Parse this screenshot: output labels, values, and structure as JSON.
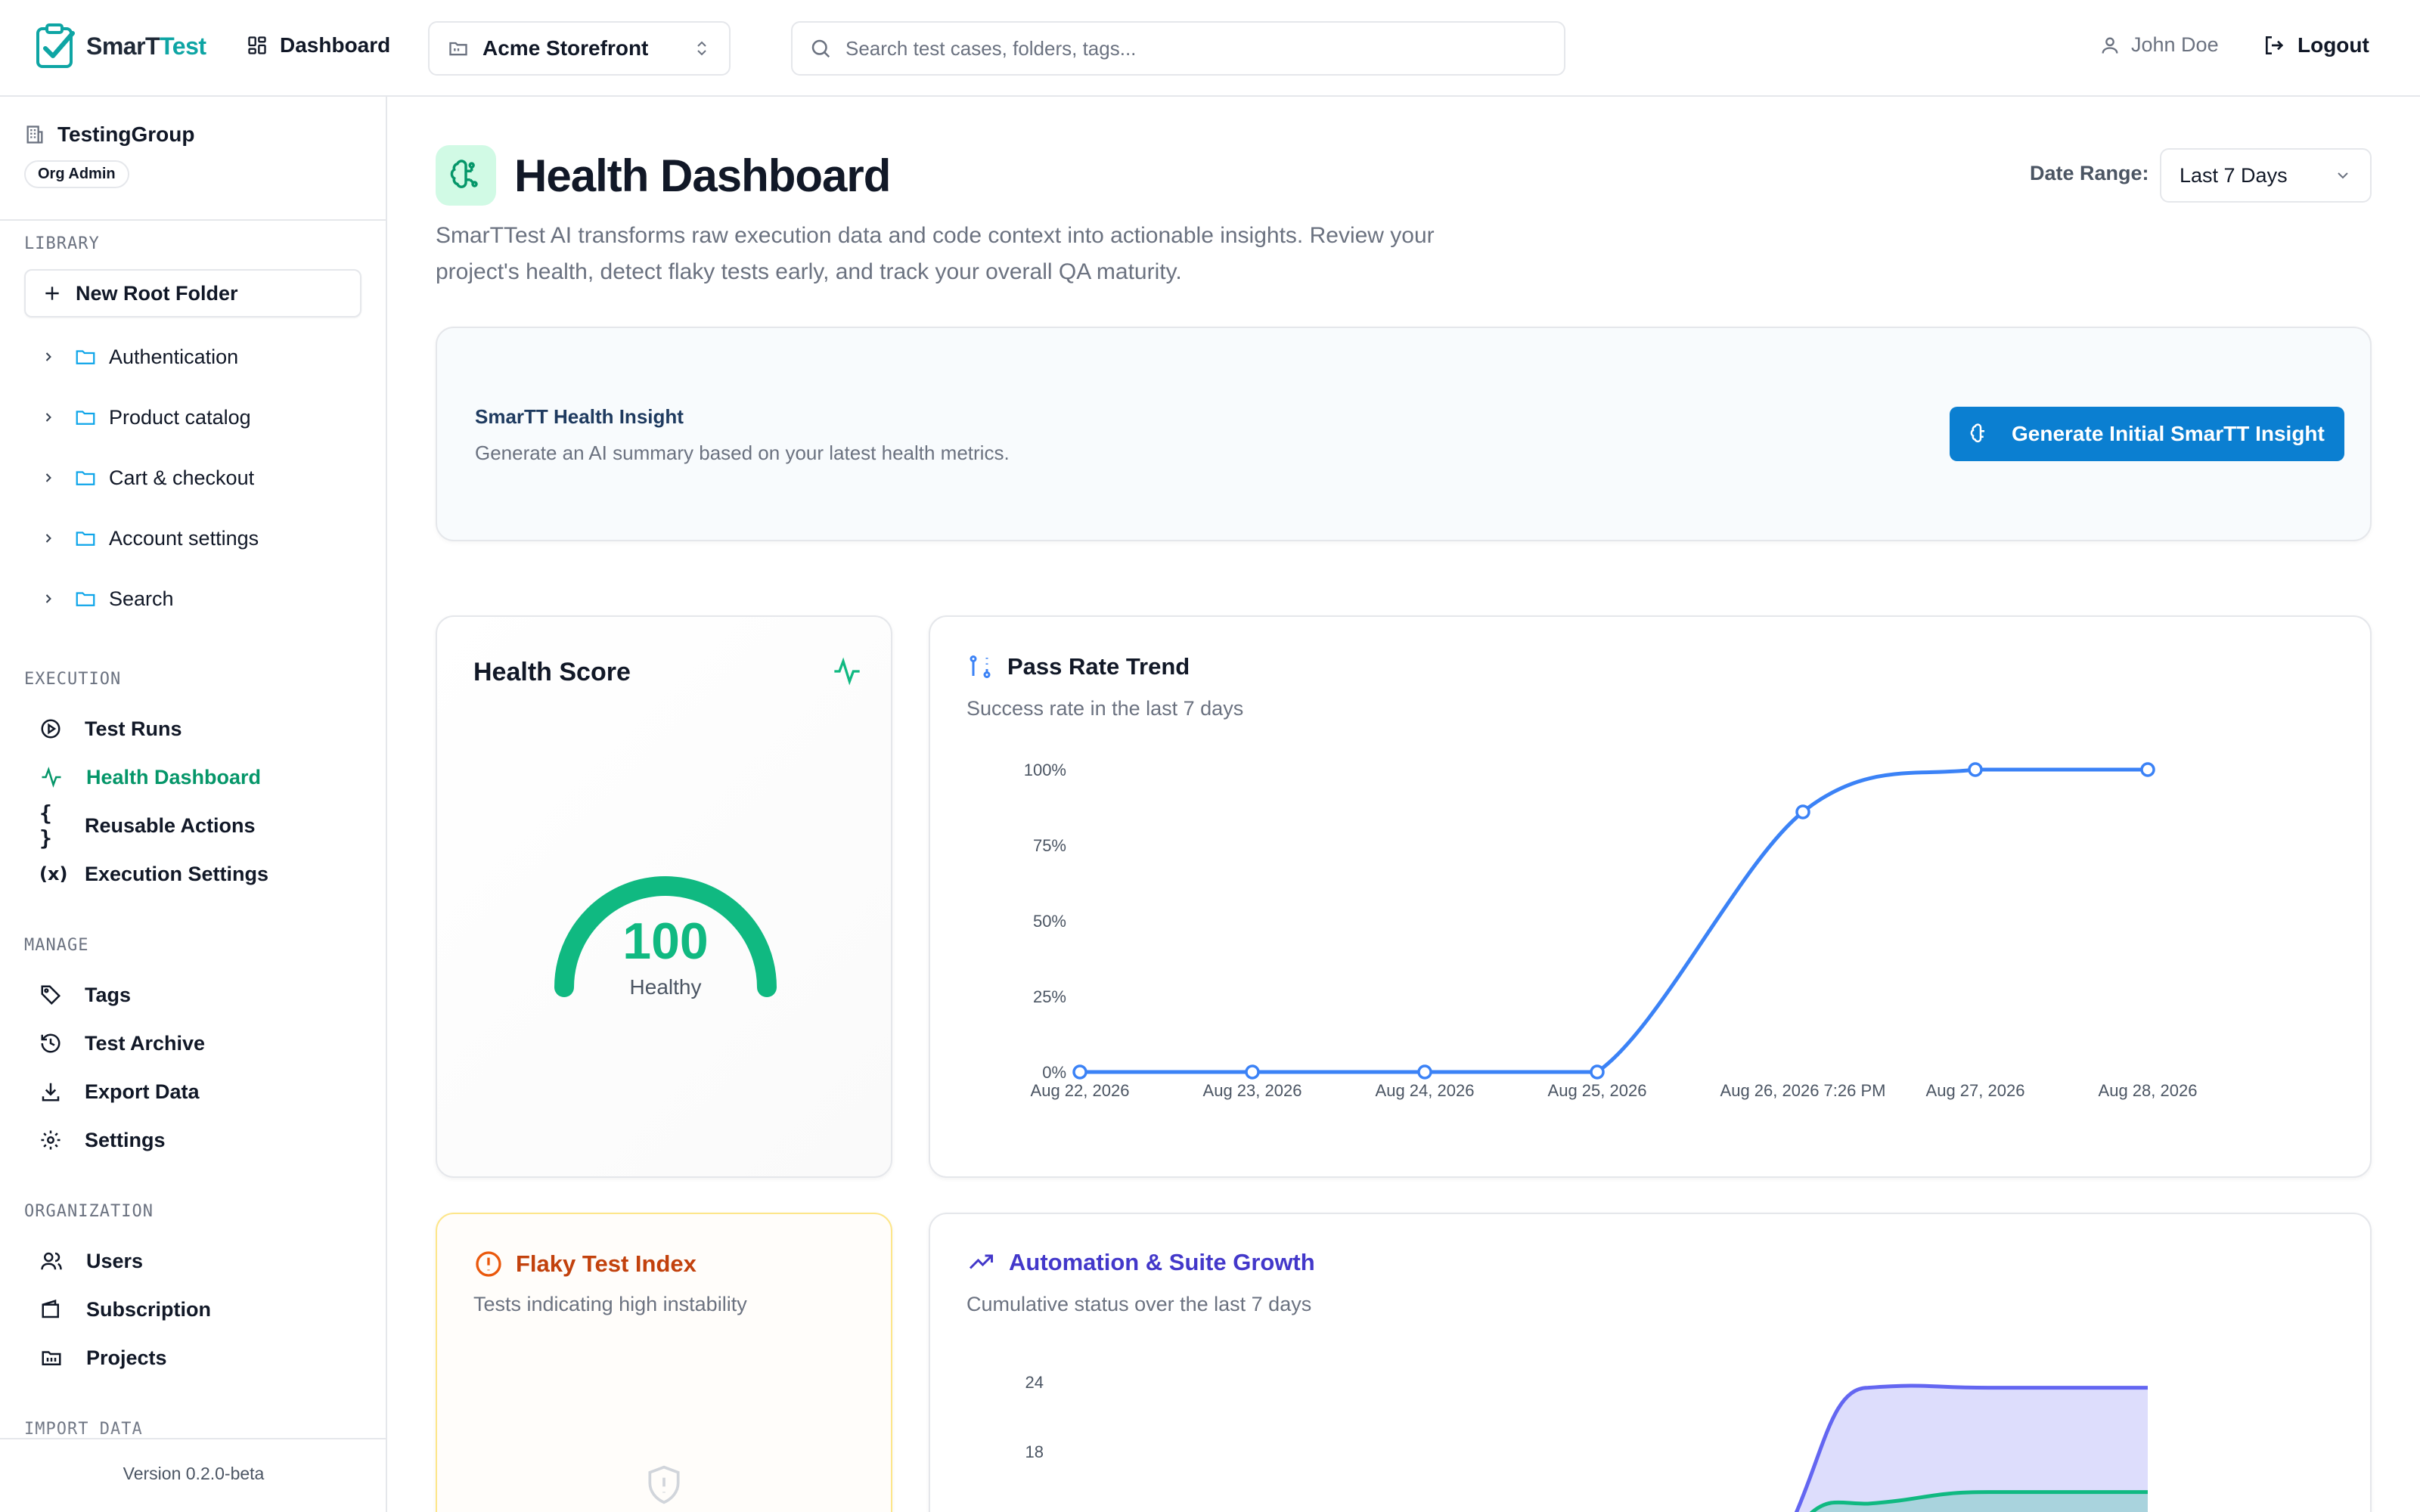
{
  "header": {
    "logo": {
      "part1": "SmarT",
      "part2": "Test"
    },
    "dashboard_label": "Dashboard",
    "project_select": "Acme Storefront",
    "search_placeholder": "Search test cases, folders, tags...",
    "user_name": "John Doe",
    "logout_label": "Logout"
  },
  "sidebar": {
    "org_name": "TestingGroup",
    "org_role": "Org Admin",
    "library_title": "LIBRARY",
    "new_root_label": "New Root Folder",
    "folders": [
      {
        "label": "Authentication"
      },
      {
        "label": "Product catalog"
      },
      {
        "label": "Cart & checkout"
      },
      {
        "label": "Account settings"
      },
      {
        "label": "Search"
      }
    ],
    "execution_title": "EXECUTION",
    "execution_items": [
      {
        "label": "Test Runs",
        "icon": "play-circle-icon"
      },
      {
        "label": "Health Dashboard",
        "icon": "activity-icon",
        "active": true
      },
      {
        "label": "Reusable Actions",
        "icon": "braces-icon"
      },
      {
        "label": "Execution Settings",
        "icon": "variable-icon"
      }
    ],
    "manage_title": "MANAGE",
    "manage_items": [
      {
        "label": "Tags",
        "icon": "tag-icon"
      },
      {
        "label": "Test Archive",
        "icon": "history-icon"
      },
      {
        "label": "Export Data",
        "icon": "download-icon"
      },
      {
        "label": "Settings",
        "icon": "gear-icon"
      }
    ],
    "organization_title": "ORGANIZATION",
    "organization_items": [
      {
        "label": "Users",
        "icon": "users-icon"
      },
      {
        "label": "Subscription",
        "icon": "wallet-icon"
      },
      {
        "label": "Projects",
        "icon": "projects-icon"
      }
    ],
    "import_title": "IMPORT DATA",
    "version": "Version 0.2.0-beta"
  },
  "main": {
    "title": "Health Dashboard",
    "description": "SmarTTest AI transforms raw execution data and code context into actionable insights. Review your project's health, detect flaky tests early, and track your overall QA maturity.",
    "date_range_label": "Date Range:",
    "date_range_value": "Last 7 Days",
    "insight": {
      "title": "SmarTT Health Insight",
      "description": "Generate an AI summary based on your latest health metrics.",
      "button": "Generate Initial SmarTT Insight"
    },
    "health_score": {
      "title": "Health Score",
      "score": "100",
      "status": "Healthy"
    },
    "pass_rate": {
      "title": "Pass Rate Trend",
      "subtitle": "Success rate in the last 7 days"
    },
    "flaky": {
      "title": "Flaky Test Index",
      "subtitle": "Tests indicating high instability"
    },
    "growth": {
      "title": "Automation & Suite Growth",
      "subtitle": "Cumulative status over the last 7 days"
    }
  },
  "colors": {
    "accent_green": "#10b981",
    "brand_blue": "#0b7fd1",
    "line_blue": "#3b82f6",
    "flaky_orange": "#c2410c",
    "growth_indigo": "#4338ca"
  },
  "chart_data": [
    {
      "type": "line",
      "x": [
        "Aug 22, 2026",
        "Aug 23, 2026",
        "Aug 24, 2026",
        "Aug 25, 2026",
        "Aug 26, 2026 7:26 PM",
        "Aug 27, 2026",
        "Aug 28, 2026"
      ],
      "series": [
        {
          "values": [
            0,
            0,
            0,
            0,
            86,
            100,
            100
          ]
        }
      ],
      "y_ticks": [
        "0%",
        "25%",
        "50%",
        "75%",
        "100%"
      ],
      "ylim": [
        0,
        100
      ],
      "grid": false
    },
    {
      "type": "area",
      "y_ticks": [
        "18",
        "24"
      ],
      "series": [
        {
          "color": "#6366f1",
          "values": [
            0,
            0,
            0,
            0,
            0,
            23.5,
            23.5,
            23.5
          ]
        },
        {
          "color": "#10b981",
          "values": [
            0,
            0,
            0,
            0,
            0,
            13.5,
            14.5,
            14.5
          ]
        }
      ]
    }
  ]
}
